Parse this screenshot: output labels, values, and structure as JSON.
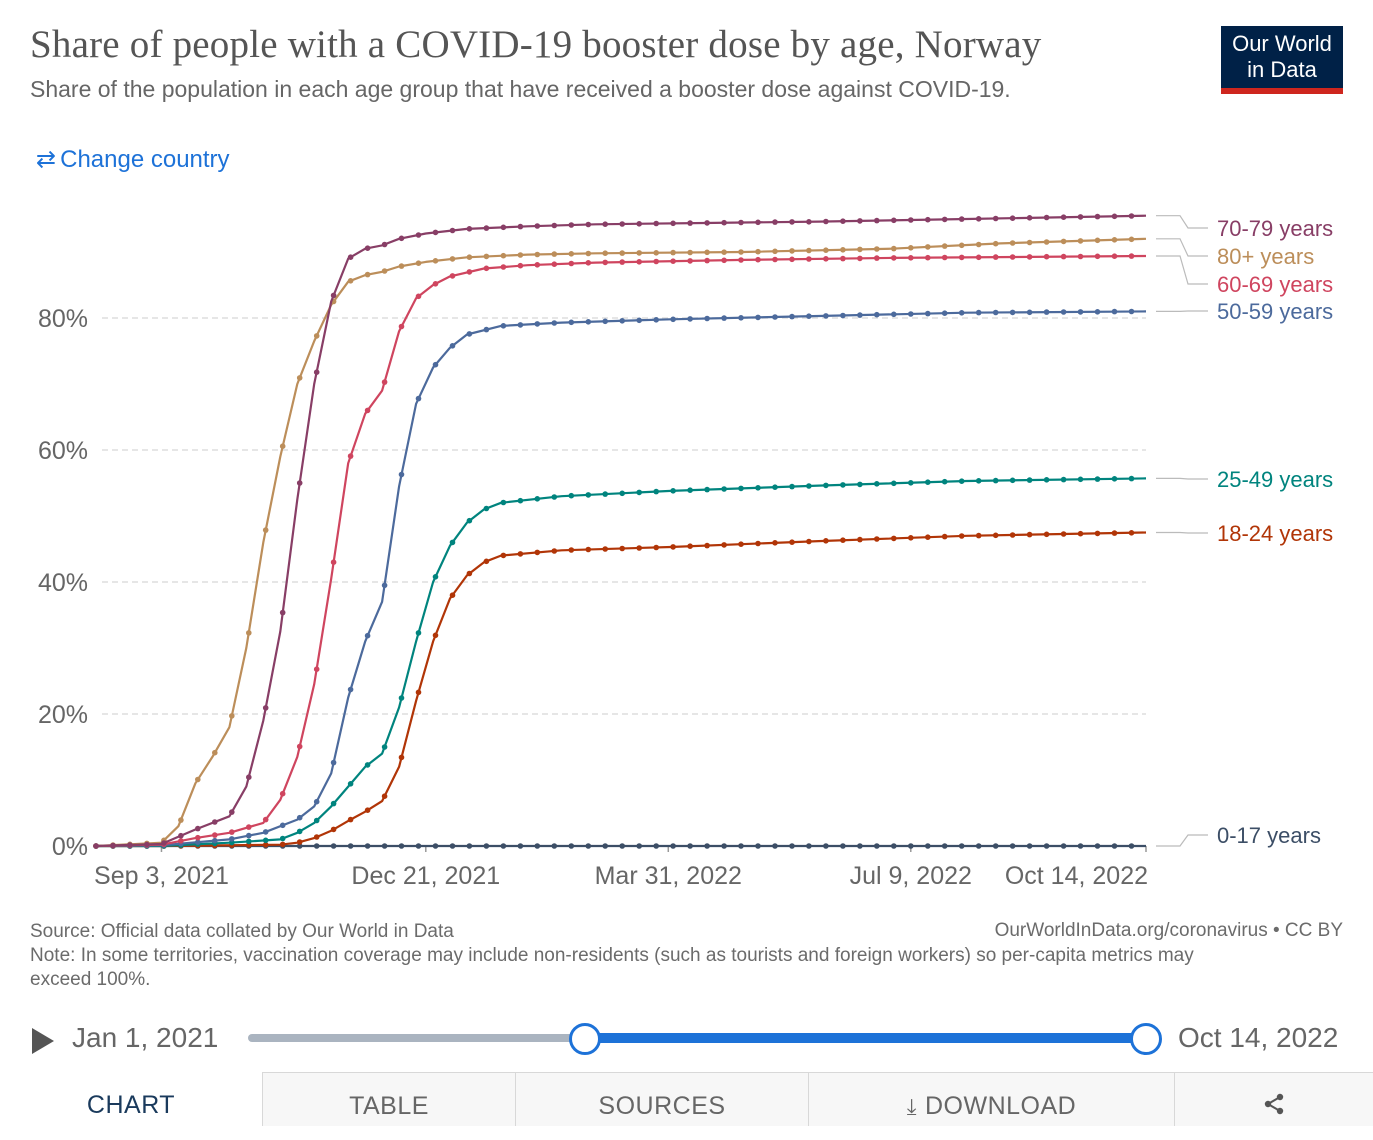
{
  "header": {
    "title": "Share of people with a COVID-19 booster dose by age, Norway",
    "subtitle": "Share of the population in each age group that have received a booster dose against COVID-19.",
    "logo_line1": "Our World",
    "logo_line2": "in Data",
    "change_country": "Change country"
  },
  "footer": {
    "source": "Source: Official data collated by Our World in Data",
    "note": "Note: In some territories, vaccination coverage may include non-residents (such as tourists and foreign workers) so per-capita metrics may exceed 100%.",
    "link": "OurWorldInData.org/coronavirus • CC BY"
  },
  "timeline": {
    "start_label": "Jan 1, 2021",
    "end_label": "Oct 14, 2022"
  },
  "tabs": {
    "chart": "CHART",
    "table": "TABLE",
    "sources": "SOURCES",
    "download": "DOWNLOAD"
  },
  "colors": {
    "accent": "#1d72d8",
    "logo_bg": "#002147",
    "logo_bar": "#ce261e"
  },
  "icons": [
    "swap-icon",
    "play-icon",
    "download-icon",
    "share-icon"
  ],
  "chart_data": {
    "type": "line",
    "x_type": "date",
    "x_ticks": [
      "Sep 3, 2021",
      "Dec 21, 2021",
      "Mar 31, 2022",
      "Jul 9, 2022",
      "Oct 14, 2022"
    ],
    "x_tick_dates": [
      "2021-09-03",
      "2021-12-21",
      "2022-03-31",
      "2022-07-09",
      "2022-10-14"
    ],
    "xlim": [
      "2021-08-07",
      "2022-10-14"
    ],
    "ylim": [
      0,
      100
    ],
    "y_ticks": [
      0,
      20,
      40,
      60,
      80
    ],
    "y_tick_labels": [
      "0%",
      "20%",
      "40%",
      "60%",
      "80%"
    ],
    "grid": "horizontal dashed",
    "legend": "right, labels at line ends",
    "series": [
      {
        "name": "70-79 years",
        "color": "#883e66",
        "points": [
          [
            "2021-08-07",
            0
          ],
          [
            "2021-09-03",
            0.3
          ],
          [
            "2021-09-17",
            2.5
          ],
          [
            "2021-10-01",
            4.5
          ],
          [
            "2021-10-08",
            9
          ],
          [
            "2021-10-15",
            19
          ],
          [
            "2021-10-22",
            32.5
          ],
          [
            "2021-10-29",
            52.5
          ],
          [
            "2021-11-05",
            70
          ],
          [
            "2021-11-12",
            82.5
          ],
          [
            "2021-11-19",
            89
          ],
          [
            "2021-11-26",
            90.5
          ],
          [
            "2021-12-03",
            91
          ],
          [
            "2021-12-10",
            92
          ],
          [
            "2021-12-21",
            92.8
          ],
          [
            "2022-01-07",
            93.5
          ],
          [
            "2022-02-01",
            93.9
          ],
          [
            "2022-03-01",
            94.2
          ],
          [
            "2022-04-15",
            94.4
          ],
          [
            "2022-06-01",
            94.6
          ],
          [
            "2022-08-01",
            95
          ],
          [
            "2022-10-14",
            95.5
          ]
        ]
      },
      {
        "name": "80+ years",
        "color": "#bc8e5a",
        "points": [
          [
            "2021-08-07",
            0
          ],
          [
            "2021-09-03",
            0.5
          ],
          [
            "2021-09-10",
            3
          ],
          [
            "2021-09-17",
            9.5
          ],
          [
            "2021-09-24",
            13.5
          ],
          [
            "2021-10-01",
            18
          ],
          [
            "2021-10-08",
            30
          ],
          [
            "2021-10-15",
            46
          ],
          [
            "2021-10-22",
            59
          ],
          [
            "2021-10-29",
            70
          ],
          [
            "2021-11-05",
            76.5
          ],
          [
            "2021-11-12",
            82
          ],
          [
            "2021-11-19",
            85.5
          ],
          [
            "2021-11-26",
            86.5
          ],
          [
            "2021-12-03",
            87
          ],
          [
            "2021-12-10",
            87.8
          ],
          [
            "2021-12-21",
            88.5
          ],
          [
            "2022-01-07",
            89.2
          ],
          [
            "2022-02-01",
            89.6
          ],
          [
            "2022-03-01",
            89.8
          ],
          [
            "2022-05-01",
            90
          ],
          [
            "2022-07-01",
            90.5
          ],
          [
            "2022-08-15",
            91.3
          ],
          [
            "2022-10-14",
            92
          ]
        ]
      },
      {
        "name": "60-69 years",
        "color": "#cf455f",
        "points": [
          [
            "2021-08-07",
            0
          ],
          [
            "2021-09-03",
            0.2
          ],
          [
            "2021-09-17",
            1.2
          ],
          [
            "2021-10-01",
            2
          ],
          [
            "2021-10-15",
            3.5
          ],
          [
            "2021-10-22",
            7
          ],
          [
            "2021-10-29",
            13.5
          ],
          [
            "2021-11-05",
            24.5
          ],
          [
            "2021-11-12",
            40.5
          ],
          [
            "2021-11-19",
            58
          ],
          [
            "2021-11-26",
            65.5
          ],
          [
            "2021-12-03",
            69
          ],
          [
            "2021-12-10",
            78
          ],
          [
            "2021-12-17",
            83
          ],
          [
            "2021-12-24",
            85
          ],
          [
            "2021-12-31",
            86.3
          ],
          [
            "2022-01-14",
            87.5
          ],
          [
            "2022-02-01",
            88
          ],
          [
            "2022-03-01",
            88.4
          ],
          [
            "2022-05-01",
            88.8
          ],
          [
            "2022-07-01",
            89.1
          ],
          [
            "2022-10-14",
            89.4
          ]
        ]
      },
      {
        "name": "50-59 years",
        "color": "#4c6a9c",
        "points": [
          [
            "2021-08-07",
            0
          ],
          [
            "2021-09-03",
            0.1
          ],
          [
            "2021-10-01",
            1
          ],
          [
            "2021-10-15",
            2
          ],
          [
            "2021-10-29",
            4
          ],
          [
            "2021-11-05",
            6
          ],
          [
            "2021-11-12",
            11
          ],
          [
            "2021-11-19",
            22.5
          ],
          [
            "2021-11-26",
            31
          ],
          [
            "2021-12-03",
            37
          ],
          [
            "2021-12-10",
            54.5
          ],
          [
            "2021-12-17",
            67
          ],
          [
            "2021-12-24",
            72.5
          ],
          [
            "2021-12-31",
            75.5
          ],
          [
            "2022-01-07",
            77.5
          ],
          [
            "2022-01-21",
            78.8
          ],
          [
            "2022-02-15",
            79.3
          ],
          [
            "2022-04-01",
            79.8
          ],
          [
            "2022-06-01",
            80.3
          ],
          [
            "2022-08-01",
            80.8
          ],
          [
            "2022-10-14",
            81
          ]
        ]
      },
      {
        "name": "25-49 years",
        "color": "#00847e",
        "points": [
          [
            "2021-08-07",
            0
          ],
          [
            "2021-09-03",
            0
          ],
          [
            "2021-10-01",
            0.5
          ],
          [
            "2021-10-22",
            1
          ],
          [
            "2021-10-29",
            2
          ],
          [
            "2021-11-05",
            3.5
          ],
          [
            "2021-11-12",
            6
          ],
          [
            "2021-11-19",
            9
          ],
          [
            "2021-11-26",
            12
          ],
          [
            "2021-12-03",
            14
          ],
          [
            "2021-12-10",
            21
          ],
          [
            "2021-12-17",
            31
          ],
          [
            "2021-12-24",
            40
          ],
          [
            "2021-12-31",
            45.5
          ],
          [
            "2022-01-07",
            49
          ],
          [
            "2022-01-14",
            51
          ],
          [
            "2022-01-21",
            52
          ],
          [
            "2022-02-15",
            53
          ],
          [
            "2022-04-01",
            53.8
          ],
          [
            "2022-06-01",
            54.6
          ],
          [
            "2022-08-01",
            55.3
          ],
          [
            "2022-10-14",
            55.7
          ]
        ]
      },
      {
        "name": "18-24 years",
        "color": "#b13507",
        "points": [
          [
            "2021-08-07",
            0
          ],
          [
            "2021-09-03",
            0
          ],
          [
            "2021-10-22",
            0.2
          ],
          [
            "2021-10-29",
            0.5
          ],
          [
            "2021-11-05",
            1.2
          ],
          [
            "2021-11-12",
            2.3
          ],
          [
            "2021-11-19",
            3.8
          ],
          [
            "2021-11-26",
            5.2
          ],
          [
            "2021-12-03",
            6.8
          ],
          [
            "2021-12-10",
            12
          ],
          [
            "2021-12-17",
            22
          ],
          [
            "2021-12-24",
            31
          ],
          [
            "2021-12-31",
            37.5
          ],
          [
            "2022-01-07",
            41
          ],
          [
            "2022-01-14",
            43
          ],
          [
            "2022-01-21",
            44
          ],
          [
            "2022-02-15",
            44.8
          ],
          [
            "2022-04-01",
            45.3
          ],
          [
            "2022-06-01",
            46.2
          ],
          [
            "2022-08-01",
            47
          ],
          [
            "2022-10-14",
            47.5
          ]
        ]
      },
      {
        "name": "0-17 years",
        "color": "#3c4e66",
        "points": [
          [
            "2021-08-07",
            0
          ],
          [
            "2022-10-14",
            0
          ]
        ]
      }
    ]
  }
}
